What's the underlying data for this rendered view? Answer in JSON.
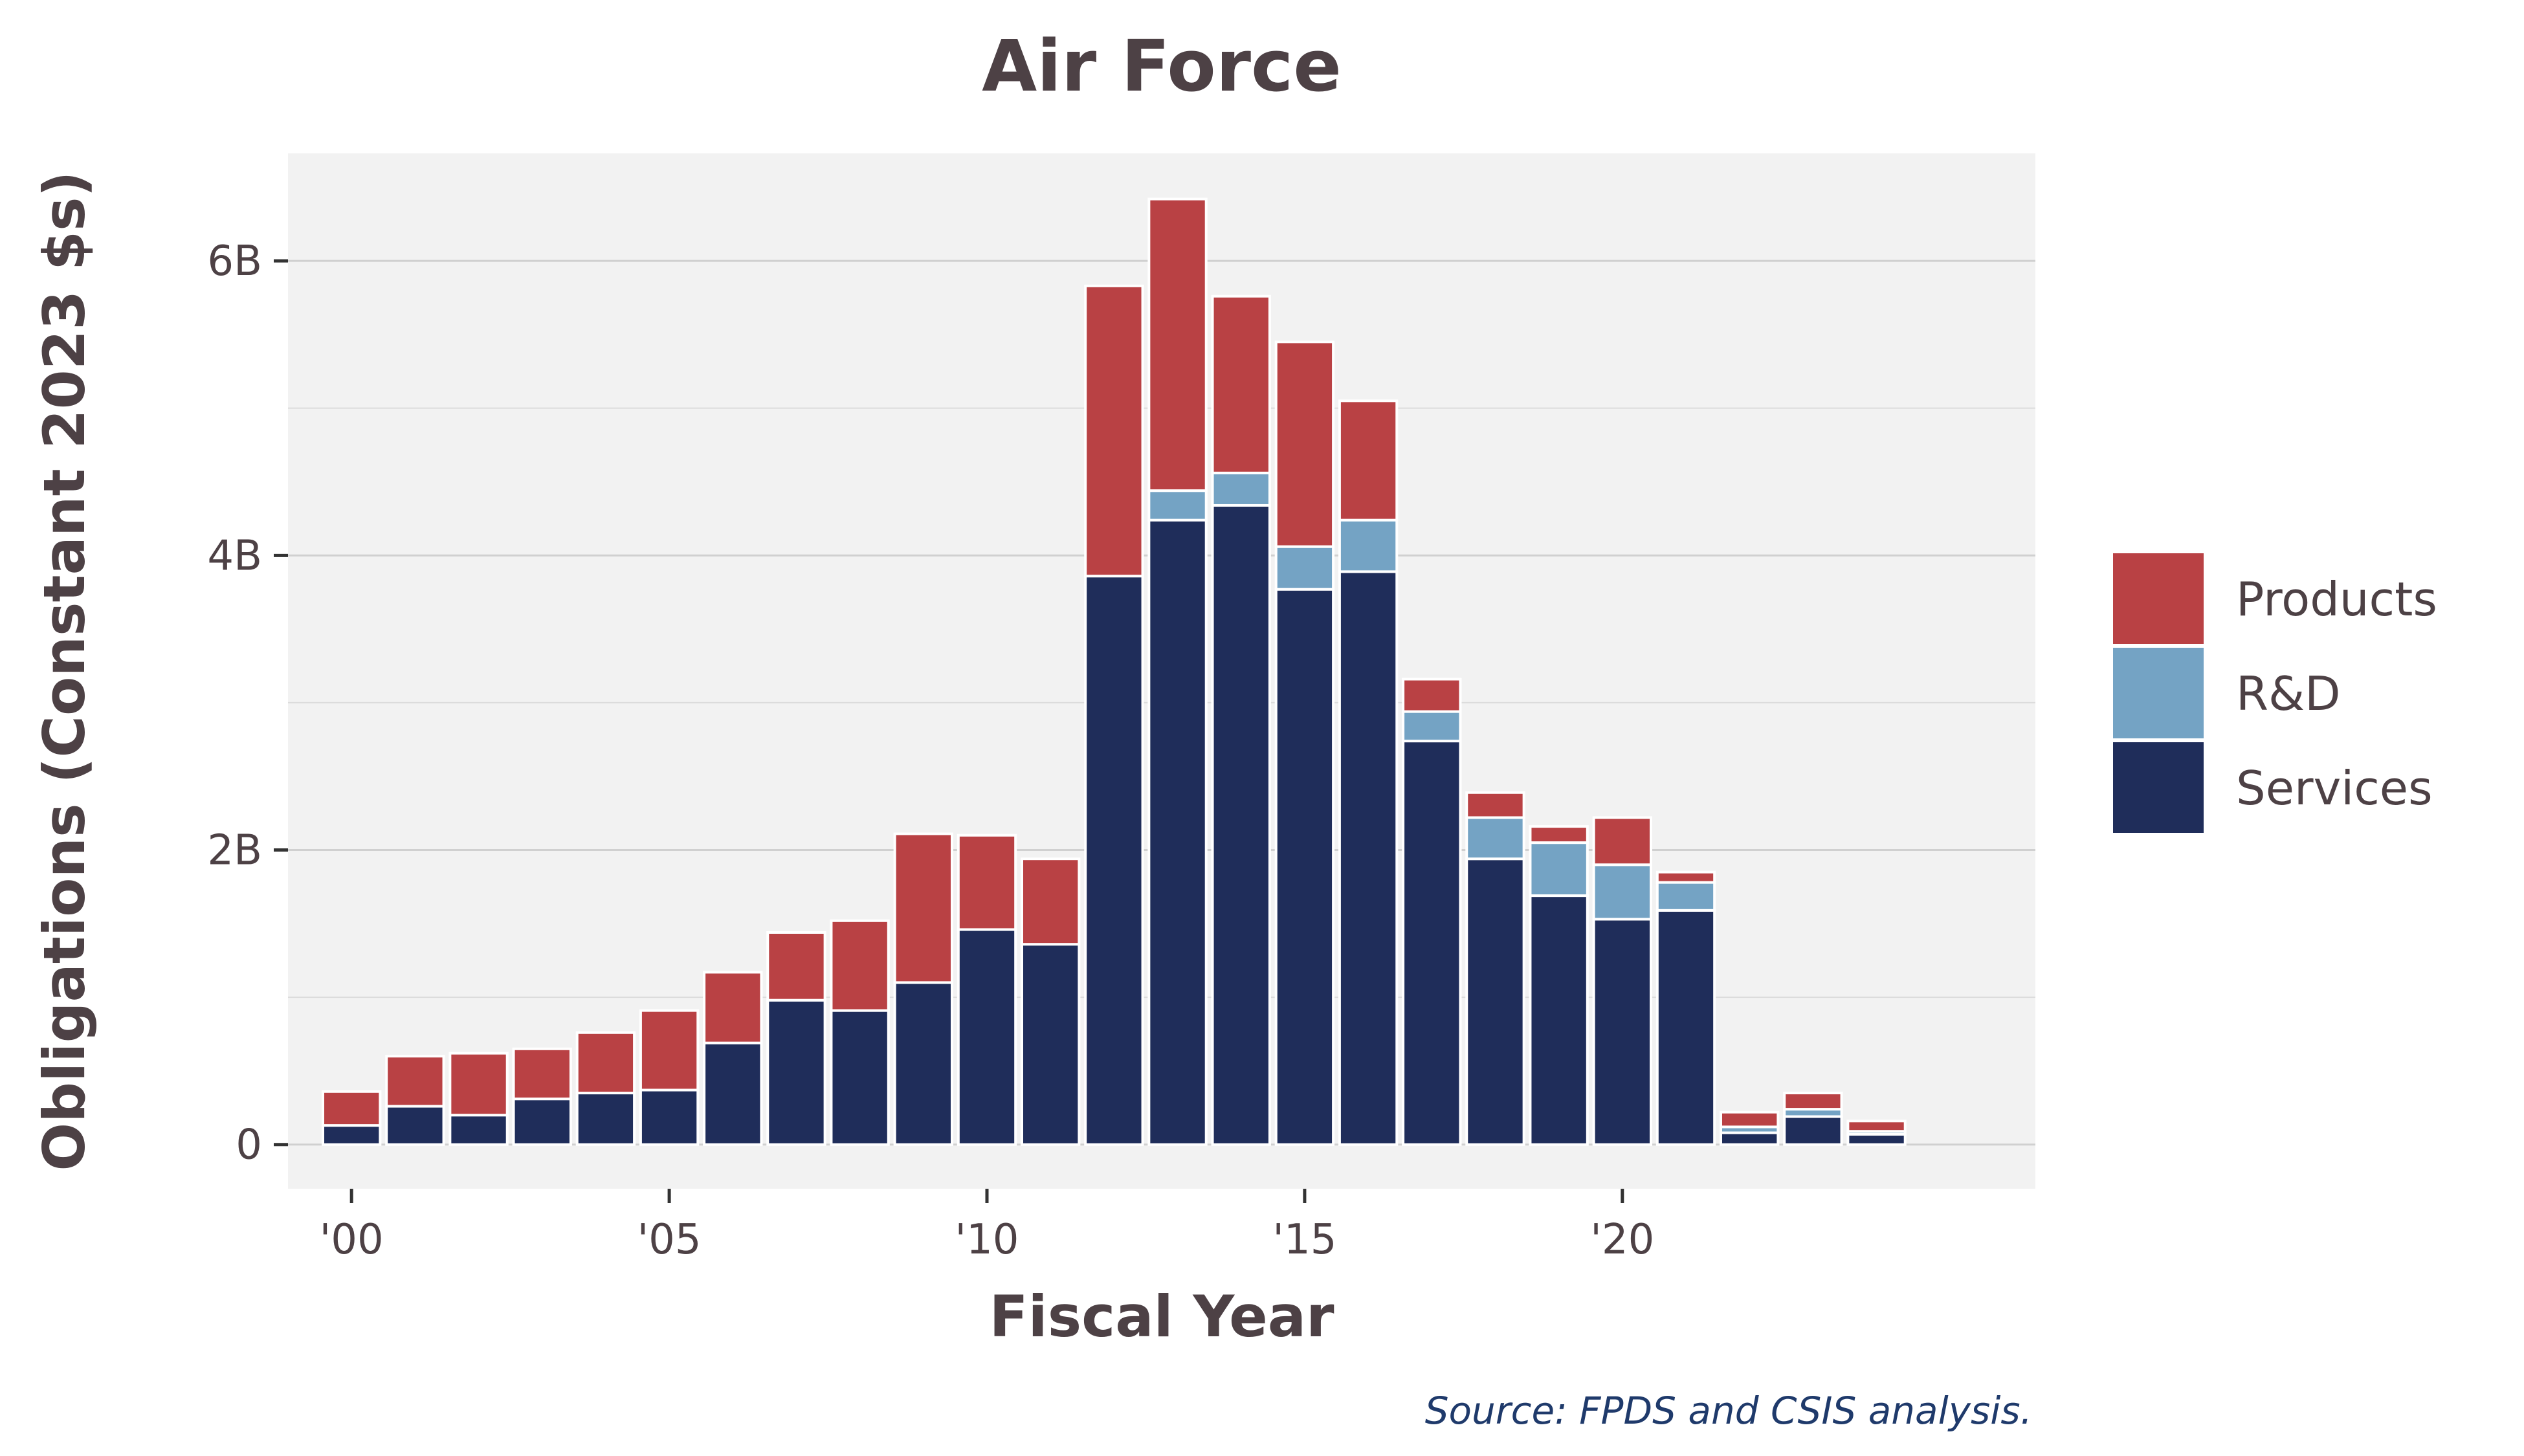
{
  "chart_data": {
    "type": "bar",
    "stacked": true,
    "title": "Air Force",
    "xlabel": "Fiscal Year",
    "ylabel": "Obligations (Constant 2023 $s)",
    "source": "Source: FPDS and CSIS analysis.",
    "x": [
      2000,
      2001,
      2002,
      2003,
      2004,
      2005,
      2006,
      2007,
      2008,
      2009,
      2010,
      2011,
      2012,
      2013,
      2014,
      2015,
      2016,
      2017,
      2018,
      2019,
      2020,
      2021,
      2022,
      2023,
      2024
    ],
    "x_ticks": [
      {
        "value": 2000,
        "label": "'00"
      },
      {
        "value": 2005,
        "label": "'05"
      },
      {
        "value": 2010,
        "label": "'10"
      },
      {
        "value": 2015,
        "label": "'15"
      },
      {
        "value": 2020,
        "label": "'20"
      }
    ],
    "y_ticks": [
      {
        "value": 0,
        "label": "0"
      },
      {
        "value": 2,
        "label": "2B"
      },
      {
        "value": 4,
        "label": "4B"
      },
      {
        "value": 6,
        "label": "6B"
      }
    ],
    "ylim": [
      -0.3,
      6.73
    ],
    "xlim": [
      1999.0,
      2026.5
    ],
    "y_unit": "billions of constant 2023 dollars",
    "grid": true,
    "legend_position": "right",
    "series": [
      {
        "name": "Services",
        "color": "#1f2d5a",
        "values": [
          0.13,
          0.26,
          0.2,
          0.31,
          0.35,
          0.37,
          0.69,
          0.98,
          0.91,
          1.1,
          1.46,
          1.36,
          3.86,
          4.24,
          4.34,
          3.77,
          3.89,
          2.74,
          1.94,
          1.69,
          1.53,
          1.59,
          0.08,
          0.19,
          0.07
        ]
      },
      {
        "name": "R&D",
        "color": "#74a3c4",
        "values": [
          0,
          0,
          0,
          0,
          0,
          0,
          0,
          0,
          0,
          0,
          0,
          0,
          0,
          0.2,
          0.22,
          0.29,
          0.35,
          0.2,
          0.28,
          0.36,
          0.37,
          0.19,
          0.04,
          0.05,
          0.02
        ]
      },
      {
        "name": "Products",
        "color": "#b94144",
        "values": [
          0.23,
          0.34,
          0.42,
          0.34,
          0.41,
          0.54,
          0.48,
          0.46,
          0.61,
          1.01,
          0.64,
          0.58,
          1.97,
          1.98,
          1.2,
          1.39,
          0.81,
          0.22,
          0.17,
          0.11,
          0.32,
          0.07,
          0.1,
          0.11,
          0.07
        ]
      }
    ],
    "legend_order": [
      "Products",
      "R&D",
      "Services"
    ]
  }
}
